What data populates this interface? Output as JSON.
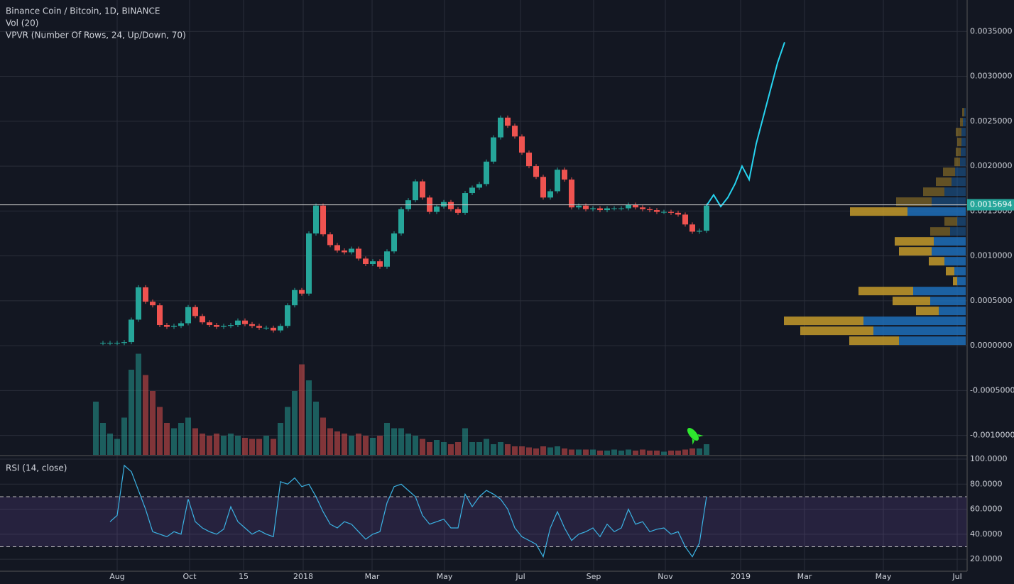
{
  "chart_data": {
    "type": "candlestick",
    "title": "Binance Coin / Bitcoin, 1D, BINANCE",
    "volume_label": "Vol (20)",
    "vpvr_label": "VPVR (Number Of Rows, 24, Up/Down, 70)",
    "rsi_label": "RSI (14, close)",
    "xticks": [
      "Aug",
      "Oct",
      "15",
      "2018",
      "Mar",
      "May",
      "Jul",
      "Sep",
      "Nov",
      "2019",
      "Mar",
      "May",
      "Jul"
    ],
    "ylim": [
      -0.001216,
      0.00385
    ],
    "yticks": [
      {
        "value": 0.0035,
        "label": "0.0035000"
      },
      {
        "value": 0.003,
        "label": "0.0030000"
      },
      {
        "value": 0.0025,
        "label": "0.0025000"
      },
      {
        "value": 0.002,
        "label": "0.0020000"
      },
      {
        "value": 0.0015,
        "label": "0.0015000"
      },
      {
        "value": 0.001,
        "label": "0.0010000"
      },
      {
        "value": 0.0005,
        "label": "0.0005000"
      },
      {
        "value": 0,
        "label": "0.0000000"
      },
      {
        "value": -0.0005,
        "label": "-0.0005000"
      },
      {
        "value": -0.001,
        "label": "-0.0010000"
      }
    ],
    "current_price": 0.0015694,
    "up_color": "#26a69a",
    "down_color": "#ef5350",
    "projection_color": "#26d4f0",
    "close": [
      3e-05,
      3e-05,
      3e-05,
      3e-05,
      4e-05,
      0.00029,
      0.00065,
      0.00049,
      0.00045,
      0.00023,
      0.00021,
      0.00022,
      0.00025,
      0.00043,
      0.00033,
      0.00026,
      0.00023,
      0.00021,
      0.00022,
      0.00023,
      0.00028,
      0.00024,
      0.00022,
      0.0002,
      0.0002,
      0.00017,
      0.00022,
      0.00045,
      0.00062,
      0.00058,
      0.00125,
      0.00156,
      0.00124,
      0.00112,
      0.00106,
      0.00104,
      0.00108,
      0.00097,
      0.00091,
      0.00094,
      0.00088,
      0.00105,
      0.00125,
      0.00152,
      0.00162,
      0.00183,
      0.00165,
      0.00149,
      0.00155,
      0.0016,
      0.00152,
      0.00148,
      0.0017,
      0.00176,
      0.0018,
      0.00205,
      0.00232,
      0.00254,
      0.00245,
      0.00233,
      0.00215,
      0.002,
      0.00188,
      0.00165,
      0.00172,
      0.00196,
      0.00185,
      0.00154,
      0.00156,
      0.00152,
      0.00153,
      0.00151,
      0.00153,
      0.00153,
      0.00153,
      0.00157,
      0.00154,
      0.00152,
      0.00151,
      0.00149,
      0.00149,
      0.00148,
      0.00146,
      0.00135,
      0.00127,
      0.00128,
      0.00156,
      null,
      null,
      null,
      null,
      null,
      null,
      null,
      null,
      null,
      null,
      null
    ],
    "projection": [
      null,
      null,
      null,
      null,
      null,
      null,
      null,
      null,
      null,
      null,
      null,
      null,
      null,
      null,
      null,
      null,
      null,
      null,
      null,
      null,
      null,
      null,
      null,
      null,
      null,
      null,
      null,
      null,
      null,
      null,
      null,
      null,
      null,
      null,
      null,
      null,
      null,
      null,
      null,
      null,
      null,
      null,
      null,
      null,
      null,
      null,
      null,
      null,
      null,
      null,
      null,
      null,
      null,
      null,
      null,
      null,
      null,
      null,
      null,
      null,
      null,
      null,
      null,
      null,
      null,
      null,
      null,
      null,
      null,
      null,
      null,
      null,
      null,
      null,
      null,
      null,
      null,
      null,
      null,
      null,
      null,
      null,
      null,
      null,
      null,
      null,
      0.00156,
      0.00168,
      0.00155,
      0.00165,
      0.0018,
      0.002,
      0.00185,
      0.00225,
      0.00255,
      0.00285,
      0.00315,
      0.00338
    ],
    "volume": [
      50,
      30,
      20,
      15,
      35,
      80,
      95,
      75,
      60,
      45,
      30,
      25,
      30,
      35,
      25,
      20,
      18,
      20,
      18,
      20,
      18,
      16,
      15,
      15,
      18,
      15,
      30,
      45,
      60,
      85,
      70,
      50,
      35,
      25,
      22,
      20,
      18,
      20,
      18,
      16,
      18,
      30,
      25,
      25,
      20,
      18,
      15,
      12,
      14,
      12,
      10,
      12,
      25,
      12,
      12,
      15,
      10,
      12,
      10,
      8,
      8,
      7,
      6,
      8,
      7,
      8,
      6,
      5,
      5,
      5,
      5,
      4,
      4,
      5,
      4,
      5,
      4,
      5,
      4,
      4,
      3,
      4,
      4,
      5,
      6,
      6,
      10,
      null,
      null,
      null,
      null,
      null,
      null,
      null,
      null,
      null,
      null,
      null
    ],
    "rsi": [
      null,
      null,
      50,
      55,
      95,
      90,
      75,
      60,
      42,
      40,
      38,
      42,
      40,
      68,
      50,
      45,
      42,
      40,
      44,
      62,
      50,
      45,
      40,
      43,
      40,
      38,
      82,
      80,
      85,
      78,
      80,
      70,
      58,
      48,
      45,
      50,
      48,
      42,
      36,
      40,
      42,
      65,
      78,
      80,
      75,
      70,
      55,
      48,
      50,
      52,
      45,
      45,
      72,
      62,
      70,
      75,
      72,
      68,
      60,
      45,
      38,
      35,
      32,
      22,
      45,
      58,
      45,
      35,
      40,
      42,
      45,
      38,
      48,
      42,
      45,
      60,
      48,
      50,
      42,
      44,
      45,
      40,
      42,
      30,
      22,
      33,
      70,
      null,
      null,
      null,
      null,
      null,
      null,
      null,
      null,
      null,
      null,
      null
    ],
    "rsi_color": "#3bb3e4",
    "rsi_ylim": [
      10.4,
      102.3
    ],
    "rsi_yticks": [
      {
        "value": 100,
        "label": "100.0000"
      },
      {
        "value": 80,
        "label": "80.0000"
      },
      {
        "value": 60,
        "label": "60.0000"
      },
      {
        "value": 40,
        "label": "40.0000"
      },
      {
        "value": 20,
        "label": "20.0000"
      }
    ],
    "rsi_overbought": 70,
    "rsi_oversold": 30,
    "vpvr_up": [
      94,
      130,
      144,
      38,
      50,
      74,
      12,
      16,
      30,
      48,
      45,
      22,
      12,
      82,
      48,
      30,
      20,
      15,
      8,
      7,
      6,
      6,
      4,
      2
    ],
    "vpvr_down": [
      70,
      103,
      112,
      32,
      53,
      77,
      6,
      12,
      22,
      46,
      55,
      28,
      18,
      81,
      50,
      30,
      22,
      17,
      8,
      7,
      6,
      8,
      4,
      3
    ],
    "vpvr_up_color": "#1e6fb8",
    "vpvr_down_color": "#c49a2a"
  }
}
